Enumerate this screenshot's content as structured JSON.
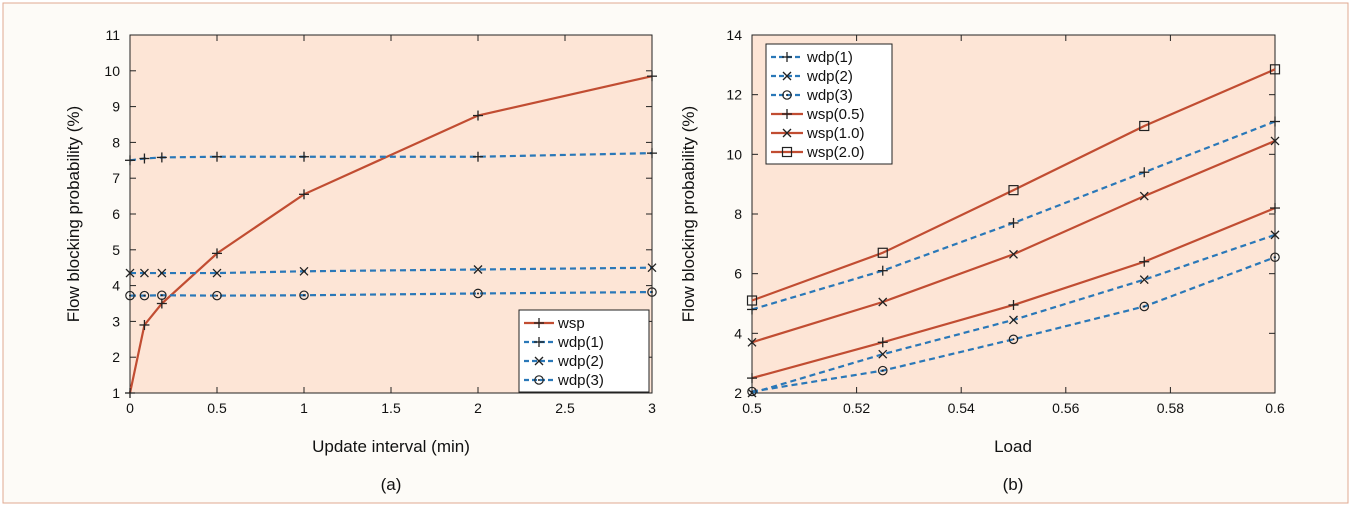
{
  "colors": {
    "plot_bg": "#fde5d6",
    "panel_bg": "#fdfbf7",
    "frame": "#e0a990",
    "red": "#c14d32",
    "blue": "#2a78b8",
    "axis": "#222222"
  },
  "chart_data": [
    {
      "type": "line",
      "caption": "(a)",
      "xlabel": "Update interval (min)",
      "ylabel": "Flow blocking probability (%)",
      "xlim": [
        0,
        3
      ],
      "ylim": [
        1,
        11
      ],
      "xticks": [
        "0",
        "0.5",
        "1",
        "1.5",
        "2",
        "2.5",
        "3"
      ],
      "yticks": [
        "1",
        "2",
        "3",
        "4",
        "5",
        "6",
        "7",
        "8",
        "9",
        "10",
        "11"
      ],
      "legend_position": "bottom-right",
      "series": [
        {
          "name": "wsp",
          "color": "red",
          "dash": false,
          "marker": "plus",
          "x": [
            0,
            0.083,
            0.183,
            0.5,
            1,
            2,
            3
          ],
          "y": [
            1.0,
            2.9,
            3.5,
            4.9,
            6.55,
            8.75,
            9.85
          ]
        },
        {
          "name": "wdp(1)",
          "color": "blue",
          "dash": true,
          "marker": "plus",
          "x": [
            0,
            0.083,
            0.183,
            0.5,
            1,
            2,
            3
          ],
          "y": [
            7.5,
            7.55,
            7.58,
            7.6,
            7.6,
            7.6,
            7.7
          ]
        },
        {
          "name": "wdp(2)",
          "color": "blue",
          "dash": true,
          "marker": "x",
          "x": [
            0,
            0.083,
            0.183,
            0.5,
            1,
            2,
            3
          ],
          "y": [
            4.35,
            4.35,
            4.35,
            4.35,
            4.4,
            4.45,
            4.5
          ]
        },
        {
          "name": "wdp(3)",
          "color": "blue",
          "dash": true,
          "marker": "circle",
          "x": [
            0,
            0.083,
            0.183,
            0.5,
            1,
            2,
            3
          ],
          "y": [
            3.72,
            3.72,
            3.73,
            3.72,
            3.73,
            3.78,
            3.82
          ]
        }
      ]
    },
    {
      "type": "line",
      "caption": "(b)",
      "xlabel": "Load",
      "ylabel": "Flow blocking probability (%)",
      "xlim": [
        0.5,
        0.6
      ],
      "ylim": [
        2,
        14
      ],
      "xticks": [
        "0.5",
        "0.52",
        "0.54",
        "0.56",
        "0.58",
        "0.6"
      ],
      "yticks": [
        "2",
        "4",
        "6",
        "8",
        "10",
        "12",
        "14"
      ],
      "legend_position": "top-left",
      "series": [
        {
          "name": "wdp(1)",
          "color": "blue",
          "dash": true,
          "marker": "plus",
          "x": [
            0.5,
            0.525,
            0.55,
            0.575,
            0.6
          ],
          "y": [
            4.8,
            6.1,
            7.7,
            9.4,
            11.1
          ]
        },
        {
          "name": "wdp(2)",
          "color": "blue",
          "dash": true,
          "marker": "x",
          "x": [
            0.5,
            0.525,
            0.55,
            0.575,
            0.6
          ],
          "y": [
            2.0,
            3.3,
            4.45,
            5.8,
            7.3
          ]
        },
        {
          "name": "wdp(3)",
          "color": "blue",
          "dash": true,
          "marker": "circle",
          "x": [
            0.5,
            0.525,
            0.55,
            0.575,
            0.6
          ],
          "y": [
            2.05,
            2.75,
            3.8,
            4.9,
            6.55
          ]
        },
        {
          "name": "wsp(0.5)",
          "color": "red",
          "dash": false,
          "marker": "plus",
          "x": [
            0.5,
            0.525,
            0.55,
            0.575,
            0.6
          ],
          "y": [
            2.5,
            3.7,
            4.95,
            6.4,
            8.2
          ]
        },
        {
          "name": "wsp(1.0)",
          "color": "red",
          "dash": false,
          "marker": "x",
          "x": [
            0.5,
            0.525,
            0.55,
            0.575,
            0.6
          ],
          "y": [
            3.7,
            5.05,
            6.65,
            8.6,
            10.45
          ]
        },
        {
          "name": "wsp(2.0)",
          "color": "red",
          "dash": false,
          "marker": "square",
          "x": [
            0.5,
            0.525,
            0.55,
            0.575,
            0.6
          ],
          "y": [
            5.1,
            6.7,
            8.8,
            10.95,
            12.85
          ]
        }
      ]
    }
  ]
}
